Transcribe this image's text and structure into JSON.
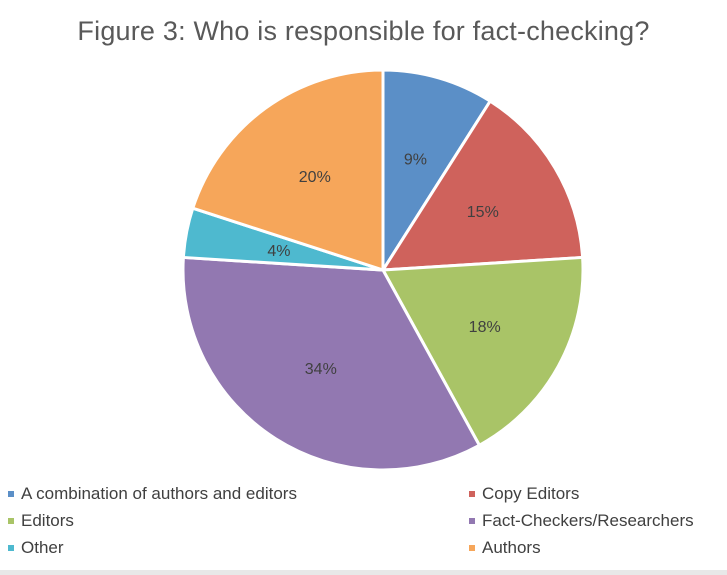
{
  "chart_data": {
    "type": "pie",
    "title": "Figure 3: Who is responsible for fact-checking?",
    "categories": [
      "A combination of authors and editors",
      "Copy Editors",
      "Editors",
      "Fact-Checkers/Researchers",
      "Other",
      "Authors"
    ],
    "values": [
      9,
      15,
      18,
      34,
      4,
      20
    ],
    "labels": [
      "9%",
      "15%",
      "18%",
      "34%",
      "4%",
      "20%"
    ],
    "colors": [
      "#5B8FC7",
      "#CF625C",
      "#A9C467",
      "#9278B1",
      "#4EB9CF",
      "#F6A65A"
    ],
    "start_angle": "12 o'clock",
    "direction": "clockwise",
    "legend_position": "bottom"
  },
  "legend": {
    "items": [
      {
        "label": "A combination of authors and editors",
        "color": "#5B8FC7"
      },
      {
        "label": "Copy Editors",
        "color": "#CF625C"
      },
      {
        "label": "Editors",
        "color": "#A9C467"
      },
      {
        "label": "Fact-Checkers/Researchers",
        "color": "#9278B1"
      },
      {
        "label": "Other",
        "color": "#4EB9CF"
      },
      {
        "label": "Authors",
        "color": "#F6A65A"
      }
    ]
  }
}
